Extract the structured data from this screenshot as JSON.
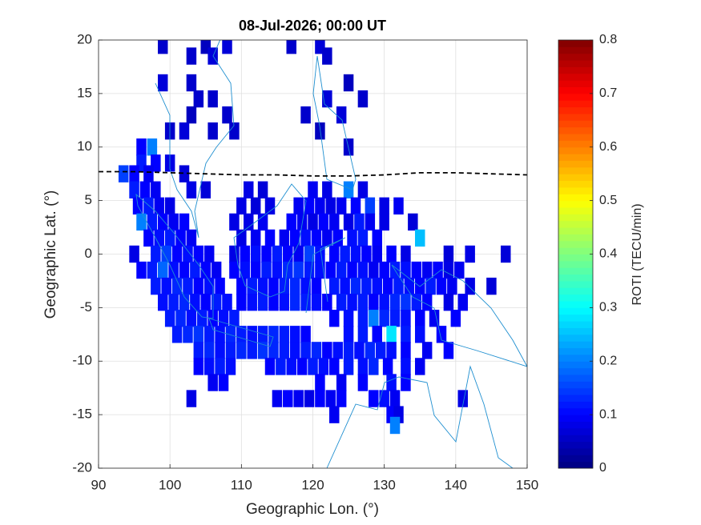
{
  "chart_data": {
    "type": "heatmap",
    "title": "08-Jul-2026; 00:00 UT",
    "x_label": "Geographic Lon. (°)",
    "y_label": "Geographic Lat. (°)",
    "colorbar_label": "ROTI (TECU/min)",
    "colormap": "jet",
    "xlim": [
      90,
      150
    ],
    "xticks": [
      90,
      100,
      110,
      120,
      130,
      140,
      150
    ],
    "ylim": [
      -20,
      20
    ],
    "yticks": [
      -20,
      -15,
      -10,
      -5,
      0,
      5,
      10,
      15,
      20
    ],
    "clim": [
      0,
      0.8
    ],
    "cticks": [
      0,
      0.1,
      0.2,
      0.3,
      0.4,
      0.5,
      0.6,
      0.7,
      0.8
    ],
    "grid": true,
    "dip_equator": {
      "color": "#000000",
      "lon": [
        90,
        95,
        100,
        105,
        110,
        115,
        120,
        125,
        130,
        135,
        140,
        145,
        150
      ],
      "lat": [
        7.7,
        7.7,
        7.6,
        7.5,
        7.4,
        7.4,
        7.3,
        7.3,
        7.4,
        7.6,
        7.6,
        7.5,
        7.4
      ]
    },
    "rows": [
      {
        "lat": 19.5,
        "lon": [
          99,
          105,
          108,
          117,
          121
        ],
        "values": [
          0.06,
          0.05,
          0.07,
          0.06,
          0.07
        ]
      },
      {
        "lat": 18.5,
        "lon": [
          103,
          106,
          122
        ],
        "values": [
          0.06,
          0.07,
          0.06
        ]
      },
      {
        "lat": 16,
        "lon": [
          99,
          103,
          125
        ],
        "values": [
          0.07,
          0.06,
          0.05
        ]
      },
      {
        "lat": 14.5,
        "lon": [
          104,
          106,
          122,
          127
        ],
        "values": [
          0.06,
          0.06,
          0.07,
          0.06
        ]
      },
      {
        "lat": 13,
        "lon": [
          103,
          108,
          119,
          124
        ],
        "values": [
          0.05,
          0.06,
          0.06,
          0.07
        ]
      },
      {
        "lat": 11.5,
        "lon": [
          100,
          102,
          106,
          109,
          121
        ],
        "values": [
          0.06,
          0.07,
          0.06,
          0.06,
          0.05
        ]
      },
      {
        "lat": 10,
        "lon": [
          96,
          97.5,
          125
        ],
        "values": [
          0.1,
          0.2,
          0.06
        ]
      },
      {
        "lat": 8.5,
        "lon": [
          96,
          98,
          100
        ],
        "values": [
          0.12,
          0.1,
          0.08
        ]
      },
      {
        "lat": 7.5,
        "lon": [
          93.5,
          95,
          97,
          102
        ],
        "values": [
          0.15,
          0.1,
          0.09,
          0.07
        ]
      },
      {
        "lat": 6,
        "lon": [
          95,
          96.5,
          98,
          103,
          105,
          111,
          113,
          120,
          122,
          125,
          127
        ],
        "values": [
          0.12,
          0.1,
          0.09,
          0.08,
          0.07,
          0.08,
          0.07,
          0.09,
          0.08,
          0.2,
          0.08
        ]
      },
      {
        "lat": 4.5,
        "lon": [
          95.5,
          97,
          98.5,
          100,
          110,
          112,
          114,
          118,
          119.5,
          121,
          122.5,
          124,
          126,
          128,
          130,
          132
        ],
        "values": [
          0.1,
          0.12,
          0.09,
          0.08,
          0.08,
          0.07,
          0.08,
          0.09,
          0.1,
          0.09,
          0.08,
          0.09,
          0.1,
          0.15,
          0.08,
          0.09
        ]
      },
      {
        "lat": 3,
        "lon": [
          96,
          97.5,
          99,
          100.5,
          102,
          109,
          111,
          113,
          117,
          118.5,
          120,
          121.5,
          123,
          125,
          126.5,
          128,
          130,
          134
        ],
        "values": [
          0.2,
          0.12,
          0.1,
          0.09,
          0.1,
          0.08,
          0.08,
          0.09,
          0.1,
          0.09,
          0.08,
          0.1,
          0.09,
          0.08,
          0.12,
          0.09,
          0.08,
          0.07
        ]
      },
      {
        "lat": 1.5,
        "lon": [
          97,
          98.5,
          100,
          101.5,
          103,
          110,
          112,
          114,
          116,
          117.5,
          119,
          120.5,
          122,
          123.5,
          125.5,
          127,
          129,
          135
        ],
        "values": [
          0.1,
          0.11,
          0.12,
          0.1,
          0.09,
          0.08,
          0.09,
          0.1,
          0.09,
          0.1,
          0.11,
          0.1,
          0.09,
          0.1,
          0.11,
          0.12,
          0.1,
          0.25
        ]
      },
      {
        "lat": 0,
        "lon": [
          95,
          98,
          99.5,
          101,
          102.5,
          104,
          105.5,
          109,
          110.5,
          112,
          113.5,
          115,
          116.5,
          118,
          119.5,
          121,
          123,
          124.5,
          126,
          127.5,
          129,
          131,
          133,
          139,
          142,
          147
        ],
        "values": [
          0.08,
          0.12,
          0.15,
          0.1,
          0.11,
          0.1,
          0.09,
          0.08,
          0.1,
          0.11,
          0.1,
          0.12,
          0.1,
          0.09,
          0.15,
          0.11,
          0.1,
          0.12,
          0.11,
          0.1,
          0.09,
          0.1,
          0.08,
          0.07,
          0.08,
          0.07
        ]
      },
      {
        "lat": -1.5,
        "lon": [
          96,
          97.5,
          99,
          100.5,
          102,
          103.5,
          105,
          106.5,
          109,
          110.5,
          112,
          113.5,
          115,
          116.5,
          118,
          119.5,
          121,
          122.5,
          124,
          125.5,
          127,
          128.5,
          130,
          131.5,
          133,
          134.5,
          136,
          137.5,
          139,
          140.5
        ],
        "values": [
          0.1,
          0.12,
          0.18,
          0.11,
          0.1,
          0.12,
          0.1,
          0.09,
          0.1,
          0.11,
          0.1,
          0.12,
          0.11,
          0.13,
          0.14,
          0.12,
          0.11,
          0.1,
          0.12,
          0.1,
          0.11,
          0.09,
          0.1,
          0.12,
          0.11,
          0.1,
          0.09,
          0.1,
          0.08,
          0.09
        ]
      },
      {
        "lat": -3,
        "lon": [
          98,
          99.5,
          101,
          102.5,
          104,
          105.5,
          107,
          110,
          111.5,
          113,
          114.5,
          116,
          117.5,
          119,
          120.5,
          123,
          124.5,
          126,
          127.5,
          129,
          130.5,
          132,
          133.5,
          135,
          136.5,
          138,
          139.5,
          142,
          145
        ],
        "values": [
          0.12,
          0.11,
          0.13,
          0.12,
          0.1,
          0.11,
          0.1,
          0.1,
          0.12,
          0.11,
          0.1,
          0.12,
          0.13,
          0.11,
          0.1,
          0.12,
          0.11,
          0.13,
          0.12,
          0.11,
          0.1,
          0.12,
          0.11,
          0.1,
          0.12,
          0.1,
          0.09,
          0.08,
          0.07
        ]
      },
      {
        "lat": -4.5,
        "lon": [
          99,
          100.5,
          102,
          103.5,
          105,
          106.5,
          108,
          110,
          111.5,
          113,
          114.5,
          116,
          117.5,
          119,
          120.5,
          122,
          124,
          125.5,
          127,
          128.5,
          130,
          131.5,
          133,
          134.5,
          136,
          139,
          141
        ],
        "values": [
          0.11,
          0.12,
          0.13,
          0.11,
          0.1,
          0.12,
          0.11,
          0.1,
          0.11,
          0.12,
          0.1,
          0.11,
          0.13,
          0.12,
          0.11,
          0.1,
          0.12,
          0.11,
          0.12,
          0.1,
          0.11,
          0.13,
          0.14,
          0.12,
          0.1,
          0.08,
          0.09
        ]
      },
      {
        "lat": -6,
        "lon": [
          100,
          101.5,
          103,
          104.5,
          106,
          107.5,
          109,
          123,
          125,
          127,
          128.5,
          130,
          131.5,
          133,
          135,
          137,
          140
        ],
        "values": [
          0.12,
          0.13,
          0.11,
          0.12,
          0.1,
          0.11,
          0.12,
          0.1,
          0.11,
          0.12,
          0.2,
          0.13,
          0.12,
          0.11,
          0.1,
          0.09,
          0.1
        ]
      },
      {
        "lat": -7.5,
        "lon": [
          101,
          102.5,
          104,
          105.5,
          107,
          108.5,
          110,
          111.5,
          113,
          114.5,
          116,
          117.5,
          119,
          125,
          127,
          129,
          131,
          133,
          135,
          138
        ],
        "values": [
          0.12,
          0.13,
          0.14,
          0.12,
          0.11,
          0.13,
          0.12,
          0.11,
          0.12,
          0.13,
          0.12,
          0.11,
          0.1,
          0.11,
          0.12,
          0.1,
          0.28,
          0.12,
          0.11,
          0.1
        ]
      },
      {
        "lat": -9,
        "lon": [
          104,
          105.5,
          107,
          108.5,
          110,
          111.5,
          113,
          114.5,
          116,
          117.5,
          119,
          120.5,
          122,
          123.5,
          125,
          126.5,
          128,
          129.5,
          131,
          133,
          136,
          139
        ],
        "values": [
          0.12,
          0.13,
          0.11,
          0.12,
          0.13,
          0.12,
          0.14,
          0.13,
          0.12,
          0.11,
          0.12,
          0.13,
          0.1,
          0.11,
          0.12,
          0.11,
          0.13,
          0.12,
          0.11,
          0.1,
          0.09,
          0.1
        ]
      },
      {
        "lat": -10.5,
        "lon": [
          104,
          105.5,
          107,
          108.5,
          114,
          115.5,
          117,
          118.5,
          120,
          121.5,
          123,
          125,
          127,
          128.5,
          130.5,
          133,
          135
        ],
        "values": [
          0.1,
          0.11,
          0.12,
          0.11,
          0.1,
          0.12,
          0.11,
          0.1,
          0.12,
          0.11,
          0.1,
          0.12,
          0.11,
          0.13,
          0.1,
          0.11,
          0.09
        ]
      },
      {
        "lat": -12,
        "lon": [
          106,
          107.5,
          121,
          124,
          127,
          131,
          133
        ],
        "values": [
          0.09,
          0.1,
          0.1,
          0.09,
          0.1,
          0.11,
          0.1
        ]
      },
      {
        "lat": -13.5,
        "lon": [
          103,
          115,
          116.5,
          118,
          119.5,
          121,
          122.5,
          124,
          128.5,
          130,
          131.5,
          141
        ],
        "values": [
          0.08,
          0.09,
          0.1,
          0.09,
          0.08,
          0.1,
          0.09,
          0.1,
          0.1,
          0.11,
          0.09,
          0.08
        ]
      },
      {
        "lat": -15,
        "lon": [
          123,
          131,
          132
        ],
        "values": [
          0.09,
          0.1,
          0.08
        ]
      },
      {
        "lat": -16,
        "lon": [
          131.5
        ],
        "values": [
          0.2
        ]
      }
    ]
  }
}
